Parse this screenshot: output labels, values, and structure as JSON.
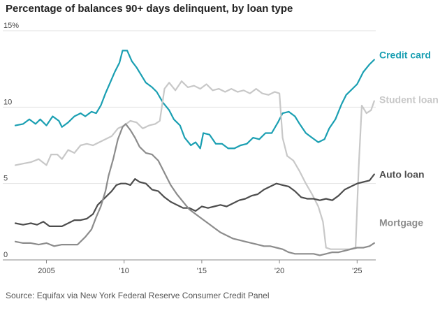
{
  "title": "Percentage of balances 90+ days delinquent, by loan type",
  "source": "Source:  Equifax via New York Federal Reserve Consumer Credit Panel",
  "chart_data": {
    "type": "line",
    "title": "Percentage of balances 90+ days delinquent, by loan type",
    "xlabel": "",
    "ylabel": "",
    "xlim": [
      2003.0,
      2026.2
    ],
    "ylim": [
      0,
      15
    ],
    "x_ticks": [
      {
        "value": 2005,
        "label": "2005"
      },
      {
        "value": 2010,
        "label": "'10"
      },
      {
        "value": 2015,
        "label": "'15"
      },
      {
        "value": 2020,
        "label": "'20"
      },
      {
        "value": 2025,
        "label": "'25"
      }
    ],
    "y_ticks": [
      {
        "value": 0,
        "label": "0"
      },
      {
        "value": 5,
        "label": "5"
      },
      {
        "value": 10,
        "label": "10"
      },
      {
        "value": 15,
        "label": "15%"
      }
    ],
    "grid": "horizontal",
    "legend": "direct labels at right end of lines",
    "series": [
      {
        "name": "Credit card",
        "color": "#1a9fb2",
        "points": [
          [
            2003.0,
            8.8
          ],
          [
            2003.5,
            8.9
          ],
          [
            2003.9,
            9.2
          ],
          [
            2004.3,
            8.9
          ],
          [
            2004.6,
            9.2
          ],
          [
            2005.0,
            8.8
          ],
          [
            2005.4,
            9.4
          ],
          [
            2005.8,
            9.1
          ],
          [
            2006.0,
            8.7
          ],
          [
            2006.4,
            9.0
          ],
          [
            2006.8,
            9.4
          ],
          [
            2007.2,
            9.6
          ],
          [
            2007.5,
            9.4
          ],
          [
            2007.9,
            9.7
          ],
          [
            2008.2,
            9.6
          ],
          [
            2008.5,
            10.1
          ],
          [
            2008.8,
            10.9
          ],
          [
            2009.1,
            11.6
          ],
          [
            2009.4,
            12.3
          ],
          [
            2009.7,
            12.9
          ],
          [
            2009.9,
            13.7
          ],
          [
            2010.2,
            13.7
          ],
          [
            2010.5,
            13.0
          ],
          [
            2010.8,
            12.6
          ],
          [
            2011.1,
            12.1
          ],
          [
            2011.4,
            11.6
          ],
          [
            2011.8,
            11.3
          ],
          [
            2012.1,
            11.0
          ],
          [
            2012.5,
            10.3
          ],
          [
            2012.9,
            9.8
          ],
          [
            2013.2,
            9.2
          ],
          [
            2013.6,
            8.8
          ],
          [
            2013.9,
            8.0
          ],
          [
            2014.3,
            7.5
          ],
          [
            2014.6,
            7.7
          ],
          [
            2014.9,
            7.3
          ],
          [
            2015.1,
            8.3
          ],
          [
            2015.5,
            8.2
          ],
          [
            2015.9,
            7.6
          ],
          [
            2016.3,
            7.6
          ],
          [
            2016.7,
            7.3
          ],
          [
            2017.1,
            7.3
          ],
          [
            2017.5,
            7.5
          ],
          [
            2017.9,
            7.6
          ],
          [
            2018.3,
            8.0
          ],
          [
            2018.7,
            7.9
          ],
          [
            2019.1,
            8.3
          ],
          [
            2019.5,
            8.3
          ],
          [
            2019.9,
            9.0
          ],
          [
            2020.2,
            9.6
          ],
          [
            2020.6,
            9.7
          ],
          [
            2021.0,
            9.4
          ],
          [
            2021.3,
            8.9
          ],
          [
            2021.7,
            8.3
          ],
          [
            2022.1,
            8.0
          ],
          [
            2022.5,
            7.7
          ],
          [
            2022.9,
            7.9
          ],
          [
            2023.2,
            8.6
          ],
          [
            2023.6,
            9.2
          ],
          [
            2024.0,
            10.2
          ],
          [
            2024.3,
            10.8
          ],
          [
            2024.7,
            11.2
          ],
          [
            2025.0,
            11.5
          ],
          [
            2025.4,
            12.3
          ],
          [
            2025.8,
            12.8
          ],
          [
            2026.1,
            13.1
          ]
        ]
      },
      {
        "name": "Student loan",
        "color": "#c8c8c8",
        "points": [
          [
            2003.0,
            6.2
          ],
          [
            2003.5,
            6.3
          ],
          [
            2004.0,
            6.4
          ],
          [
            2004.5,
            6.6
          ],
          [
            2005.0,
            6.2
          ],
          [
            2005.3,
            6.9
          ],
          [
            2005.7,
            6.9
          ],
          [
            2006.0,
            6.6
          ],
          [
            2006.4,
            7.2
          ],
          [
            2006.8,
            7.0
          ],
          [
            2007.2,
            7.5
          ],
          [
            2007.6,
            7.6
          ],
          [
            2008.0,
            7.5
          ],
          [
            2008.4,
            7.7
          ],
          [
            2008.8,
            7.9
          ],
          [
            2009.2,
            8.1
          ],
          [
            2009.6,
            8.6
          ],
          [
            2010.0,
            8.8
          ],
          [
            2010.4,
            9.1
          ],
          [
            2010.8,
            9.0
          ],
          [
            2011.2,
            8.6
          ],
          [
            2011.6,
            8.8
          ],
          [
            2012.0,
            8.9
          ],
          [
            2012.3,
            9.1
          ],
          [
            2012.6,
            11.2
          ],
          [
            2012.9,
            11.6
          ],
          [
            2013.3,
            11.1
          ],
          [
            2013.7,
            11.7
          ],
          [
            2014.1,
            11.3
          ],
          [
            2014.5,
            11.4
          ],
          [
            2014.9,
            11.2
          ],
          [
            2015.3,
            11.5
          ],
          [
            2015.7,
            11.1
          ],
          [
            2016.1,
            11.2
          ],
          [
            2016.5,
            11.0
          ],
          [
            2016.9,
            11.2
          ],
          [
            2017.3,
            11.0
          ],
          [
            2017.7,
            11.1
          ],
          [
            2018.1,
            10.9
          ],
          [
            2018.5,
            11.2
          ],
          [
            2018.9,
            10.9
          ],
          [
            2019.3,
            10.8
          ],
          [
            2019.7,
            11.0
          ],
          [
            2020.0,
            10.9
          ],
          [
            2020.2,
            8.0
          ],
          [
            2020.5,
            6.8
          ],
          [
            2020.9,
            6.5
          ],
          [
            2021.3,
            5.8
          ],
          [
            2021.7,
            5.0
          ],
          [
            2022.1,
            4.3
          ],
          [
            2022.5,
            3.5
          ],
          [
            2022.8,
            2.5
          ],
          [
            2023.0,
            0.8
          ],
          [
            2023.3,
            0.7
          ],
          [
            2023.7,
            0.7
          ],
          [
            2024.1,
            0.7
          ],
          [
            2024.5,
            0.7
          ],
          [
            2024.9,
            0.8
          ],
          [
            2025.1,
            6.0
          ],
          [
            2025.3,
            10.1
          ],
          [
            2025.6,
            9.6
          ],
          [
            2025.9,
            9.8
          ],
          [
            2026.1,
            10.4
          ]
        ]
      },
      {
        "name": "Auto loan",
        "color": "#4d4d4d",
        "points": [
          [
            2003.0,
            2.4
          ],
          [
            2003.5,
            2.3
          ],
          [
            2004.0,
            2.4
          ],
          [
            2004.4,
            2.3
          ],
          [
            2004.8,
            2.5
          ],
          [
            2005.2,
            2.2
          ],
          [
            2005.6,
            2.2
          ],
          [
            2006.0,
            2.2
          ],
          [
            2006.4,
            2.4
          ],
          [
            2006.8,
            2.6
          ],
          [
            2007.2,
            2.6
          ],
          [
            2007.6,
            2.7
          ],
          [
            2008.0,
            3.0
          ],
          [
            2008.3,
            3.6
          ],
          [
            2008.6,
            3.9
          ],
          [
            2008.9,
            4.2
          ],
          [
            2009.2,
            4.5
          ],
          [
            2009.5,
            4.9
          ],
          [
            2009.8,
            5.0
          ],
          [
            2010.1,
            5.0
          ],
          [
            2010.4,
            4.9
          ],
          [
            2010.7,
            5.3
          ],
          [
            2011.0,
            5.1
          ],
          [
            2011.4,
            5.0
          ],
          [
            2011.8,
            4.6
          ],
          [
            2012.2,
            4.5
          ],
          [
            2012.6,
            4.1
          ],
          [
            2013.0,
            3.8
          ],
          [
            2013.4,
            3.6
          ],
          [
            2013.8,
            3.4
          ],
          [
            2014.2,
            3.4
          ],
          [
            2014.6,
            3.2
          ],
          [
            2015.0,
            3.5
          ],
          [
            2015.4,
            3.4
          ],
          [
            2015.8,
            3.5
          ],
          [
            2016.2,
            3.6
          ],
          [
            2016.6,
            3.5
          ],
          [
            2017.0,
            3.7
          ],
          [
            2017.4,
            3.9
          ],
          [
            2017.8,
            4.0
          ],
          [
            2018.2,
            4.2
          ],
          [
            2018.6,
            4.3
          ],
          [
            2019.0,
            4.6
          ],
          [
            2019.4,
            4.8
          ],
          [
            2019.8,
            5.0
          ],
          [
            2020.2,
            4.9
          ],
          [
            2020.6,
            4.8
          ],
          [
            2021.0,
            4.5
          ],
          [
            2021.4,
            4.1
          ],
          [
            2021.8,
            4.0
          ],
          [
            2022.2,
            4.0
          ],
          [
            2022.6,
            3.9
          ],
          [
            2023.0,
            4.0
          ],
          [
            2023.4,
            3.9
          ],
          [
            2023.8,
            4.2
          ],
          [
            2024.2,
            4.6
          ],
          [
            2024.6,
            4.8
          ],
          [
            2025.0,
            5.0
          ],
          [
            2025.4,
            5.1
          ],
          [
            2025.8,
            5.2
          ],
          [
            2026.1,
            5.6
          ]
        ]
      },
      {
        "name": "Mortgage",
        "color": "#8c8c8c",
        "points": [
          [
            2003.0,
            1.2
          ],
          [
            2003.5,
            1.1
          ],
          [
            2004.0,
            1.1
          ],
          [
            2004.5,
            1.0
          ],
          [
            2005.0,
            1.1
          ],
          [
            2005.5,
            0.9
          ],
          [
            2006.0,
            1.0
          ],
          [
            2006.5,
            1.0
          ],
          [
            2007.0,
            1.0
          ],
          [
            2007.5,
            1.5
          ],
          [
            2007.9,
            2.0
          ],
          [
            2008.2,
            2.8
          ],
          [
            2008.5,
            3.5
          ],
          [
            2008.8,
            4.5
          ],
          [
            2009.0,
            5.5
          ],
          [
            2009.3,
            6.6
          ],
          [
            2009.6,
            7.9
          ],
          [
            2009.9,
            8.7
          ],
          [
            2010.1,
            8.9
          ],
          [
            2010.4,
            8.5
          ],
          [
            2010.7,
            8.0
          ],
          [
            2011.0,
            7.4
          ],
          [
            2011.4,
            7.0
          ],
          [
            2011.8,
            6.9
          ],
          [
            2012.2,
            6.5
          ],
          [
            2012.6,
            5.7
          ],
          [
            2013.0,
            4.9
          ],
          [
            2013.4,
            4.3
          ],
          [
            2013.8,
            3.8
          ],
          [
            2014.2,
            3.3
          ],
          [
            2014.6,
            3.0
          ],
          [
            2015.0,
            2.7
          ],
          [
            2015.4,
            2.4
          ],
          [
            2015.8,
            2.1
          ],
          [
            2016.2,
            1.8
          ],
          [
            2016.6,
            1.6
          ],
          [
            2017.0,
            1.4
          ],
          [
            2017.4,
            1.3
          ],
          [
            2017.8,
            1.2
          ],
          [
            2018.2,
            1.1
          ],
          [
            2018.6,
            1.0
          ],
          [
            2019.0,
            0.9
          ],
          [
            2019.4,
            0.9
          ],
          [
            2019.8,
            0.8
          ],
          [
            2020.2,
            0.7
          ],
          [
            2020.6,
            0.5
          ],
          [
            2021.0,
            0.4
          ],
          [
            2021.4,
            0.4
          ],
          [
            2021.8,
            0.4
          ],
          [
            2022.2,
            0.4
          ],
          [
            2022.6,
            0.3
          ],
          [
            2023.0,
            0.4
          ],
          [
            2023.4,
            0.5
          ],
          [
            2023.8,
            0.5
          ],
          [
            2024.2,
            0.6
          ],
          [
            2024.6,
            0.7
          ],
          [
            2025.0,
            0.8
          ],
          [
            2025.4,
            0.8
          ],
          [
            2025.8,
            0.9
          ],
          [
            2026.1,
            1.1
          ]
        ]
      }
    ]
  }
}
